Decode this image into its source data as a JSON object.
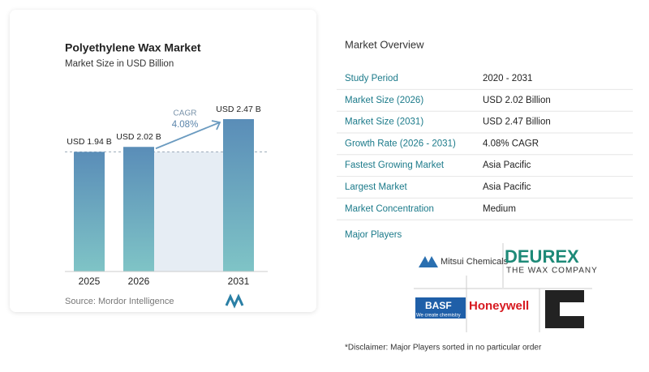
{
  "chart_data": {
    "type": "bar",
    "title": "Polyethylene Wax Market",
    "subtitle": "Market Size in USD Billion",
    "categories": [
      "2025",
      "2026",
      "2031"
    ],
    "values": [
      1.94,
      2.02,
      2.47
    ],
    "value_labels": [
      "USD 1.94 B",
      "USD 2.02 B",
      "USD 2.47 B"
    ],
    "annotation": {
      "label": "CAGR",
      "value": "4.08%"
    },
    "source": "Source: Mordor Intelligence",
    "color_top": "#5a8db8",
    "color_bottom": "#7fc4c6"
  },
  "overview": {
    "title": "Market Overview",
    "rows": [
      [
        "Study Period",
        "2020 - 2031"
      ],
      [
        "Market Size (2026)",
        "USD 2.02 Billion"
      ],
      [
        "Market Size (2031)",
        "USD 2.47 Billion"
      ],
      [
        "Growth Rate (2026 - 2031)",
        "4.08% CAGR"
      ],
      [
        "Fastest Growing Market",
        "Asia Pacific"
      ],
      [
        "Largest Market",
        "Asia Pacific"
      ],
      [
        "Market Concentration",
        "Medium"
      ]
    ]
  },
  "players": {
    "title": "Major Players",
    "mitsui": "Mitsui Chemicals",
    "deurex": "DEUREX",
    "deurex_tag": "THE WAX COMPANY",
    "basf": "BASF",
    "basf_tag": "We create chemistry",
    "honeywell": "Honeywell"
  },
  "disclaimer": "*Disclaimer: Major Players sorted in no particular order"
}
